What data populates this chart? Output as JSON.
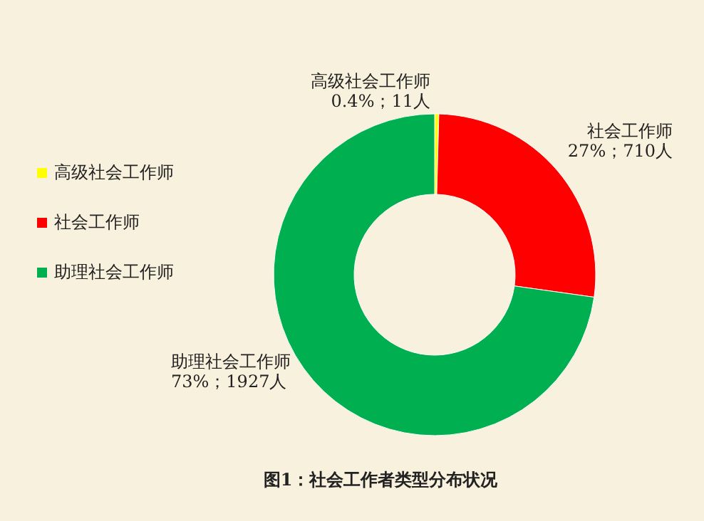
{
  "chart_data": {
    "type": "donut",
    "title": "图1：社会工作者类型分布状况",
    "categories": [
      "高级社会工作师",
      "社会工作师",
      "助理社会工作师"
    ],
    "values": [
      11,
      710,
      1927
    ],
    "colors": [
      "#ffff00",
      "#ff0000",
      "#00b050"
    ],
    "value_labels": [
      "高级社会工作师0.4%；11人",
      "社会工作师 27%；710人",
      "助理社会工作师73%；1927人"
    ],
    "legend": "left"
  }
}
